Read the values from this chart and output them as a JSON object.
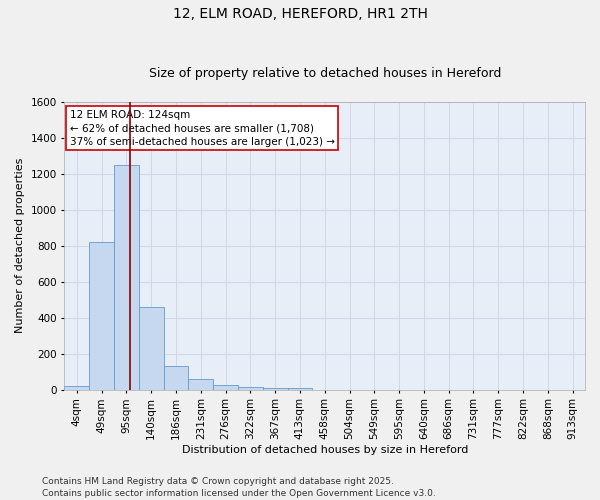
{
  "title_line1": "12, ELM ROAD, HEREFORD, HR1 2TH",
  "title_line2": "Size of property relative to detached houses in Hereford",
  "xlabel": "Distribution of detached houses by size in Hereford",
  "ylabel": "Number of detached properties",
  "categories": [
    "4sqm",
    "49sqm",
    "95sqm",
    "140sqm",
    "186sqm",
    "231sqm",
    "276sqm",
    "322sqm",
    "367sqm",
    "413sqm",
    "458sqm",
    "504sqm",
    "549sqm",
    "595sqm",
    "640sqm",
    "686sqm",
    "731sqm",
    "777sqm",
    "822sqm",
    "868sqm",
    "913sqm"
  ],
  "values": [
    20,
    820,
    1245,
    460,
    130,
    62,
    25,
    15,
    10,
    10,
    0,
    0,
    0,
    0,
    0,
    0,
    0,
    0,
    0,
    0,
    0
  ],
  "bar_color": "#c5d8f0",
  "bar_edge_color": "#6699cc",
  "red_line_x": 2.15,
  "red_line_color": "#8b0000",
  "annotation_text": "12 ELM ROAD: 124sqm\n← 62% of detached houses are smaller (1,708)\n37% of semi-detached houses are larger (1,023) →",
  "annotation_box_color": "#ffffff",
  "annotation_box_edge_color": "#cc0000",
  "ylim": [
    0,
    1600
  ],
  "yticks": [
    0,
    200,
    400,
    600,
    800,
    1000,
    1200,
    1400,
    1600
  ],
  "background_color": "#e8eef8",
  "grid_color": "#d0d8e8",
  "fig_background": "#f0f0f0",
  "footer_line1": "Contains HM Land Registry data © Crown copyright and database right 2025.",
  "footer_line2": "Contains public sector information licensed under the Open Government Licence v3.0.",
  "title_fontsize": 10,
  "subtitle_fontsize": 9,
  "axis_label_fontsize": 8,
  "tick_fontsize": 7.5,
  "annotation_fontsize": 7.5,
  "footer_fontsize": 6.5
}
